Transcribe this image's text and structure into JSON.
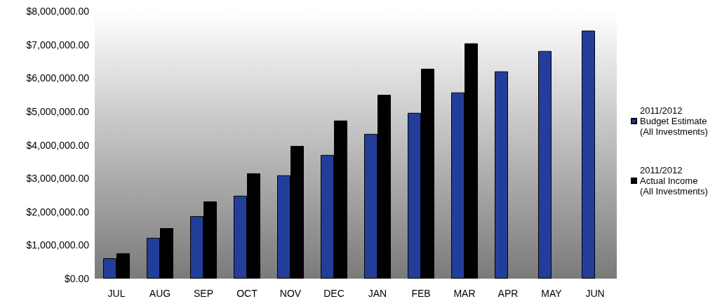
{
  "chart_data": {
    "type": "bar",
    "categories": [
      "JUL",
      "AUG",
      "SEP",
      "OCT",
      "NOV",
      "DEC",
      "JAN",
      "FEB",
      "MAR",
      "APR",
      "MAY",
      "JUN"
    ],
    "series": [
      {
        "name": "2011/2012 Budget Estimate (All Investments)",
        "color": "#233e9a",
        "values": [
          610000,
          1220000,
          1870000,
          2480000,
          3090000,
          3700000,
          4330000,
          4960000,
          5570000,
          6200000,
          6810000,
          7420000
        ]
      },
      {
        "name": "2011/2012 Actual Income (All Investments)",
        "color": "#000000",
        "values": [
          760000,
          1510000,
          2310000,
          3150000,
          3970000,
          4730000,
          5500000,
          6280000,
          7040000,
          null,
          null,
          null
        ]
      }
    ],
    "ylim": [
      0,
      8000000
    ],
    "yticks": [
      {
        "value": 0,
        "label": "$0.00"
      },
      {
        "value": 1000000,
        "label": "$1,000,000.00"
      },
      {
        "value": 2000000,
        "label": "$2,000,000.00"
      },
      {
        "value": 3000000,
        "label": "$3,000,000.00"
      },
      {
        "value": 4000000,
        "label": "$4,000,000.00"
      },
      {
        "value": 5000000,
        "label": "$5,000,000.00"
      },
      {
        "value": 6000000,
        "label": "$6,000,000.00"
      },
      {
        "value": 7000000,
        "label": "$7,000,000.00"
      },
      {
        "value": 8000000,
        "label": "$8,000,000.00"
      }
    ],
    "grid": false,
    "legend": "right"
  }
}
